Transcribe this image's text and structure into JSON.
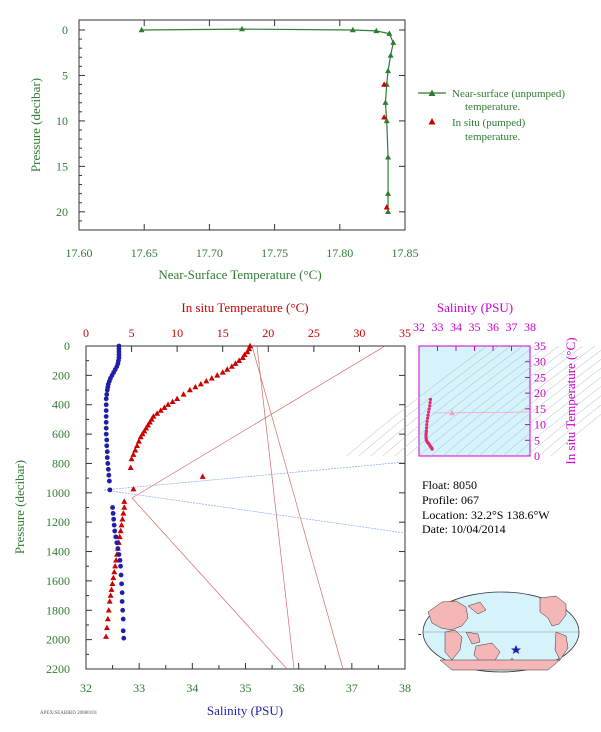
{
  "chart_data": [
    {
      "type": "line",
      "xlabel": "Near-Surface Temperature (°C)",
      "ylabel": "Pressure (decibar)",
      "xlim": [
        17.6,
        17.85
      ],
      "ylim": [
        0,
        22
      ],
      "xticks": [
        "17.60",
        "17.65",
        "17.70",
        "17.75",
        "17.80",
        "17.85"
      ],
      "yticks": [
        "0",
        "5",
        "10",
        "15",
        "20"
      ],
      "legend": [
        "Near-surface (unpumped)",
        "temperature.",
        "In situ (pumped)",
        "temperature."
      ],
      "series": [
        {
          "name": "Near-surface (unpumped) temperature.",
          "x": [
            17.648,
            17.725,
            17.81,
            17.828,
            17.838,
            17.841,
            17.839,
            17.837,
            17.836,
            17.835,
            17.836,
            17.837,
            17.837,
            17.837
          ],
          "y": [
            0.0,
            -0.1,
            0.0,
            0.1,
            0.4,
            1.4,
            2.8,
            4.5,
            6.0,
            8.0,
            10.0,
            14.0,
            18.0,
            20.0
          ]
        },
        {
          "name": "In situ (pumped) temperature.",
          "x": [
            17.834,
            17.834,
            17.836
          ],
          "y": [
            6.0,
            9.6,
            19.5
          ]
        }
      ]
    },
    {
      "type": "scatter",
      "xlabel": "Salinity (PSU)",
      "x2label": "In situ Temperature (°C)",
      "ylabel": "Pressure (decibar)",
      "xlim": [
        32,
        38
      ],
      "x2lim": [
        0,
        35
      ],
      "ylim": [
        0,
        2200
      ],
      "xticks": [
        "32",
        "33",
        "34",
        "35",
        "36",
        "37",
        "38"
      ],
      "x2ticks": [
        "0",
        "5",
        "10",
        "15",
        "20",
        "25",
        "30",
        "35"
      ],
      "yticks": [
        "0",
        "200",
        "400",
        "600",
        "800",
        "1000",
        "1200",
        "1400",
        "1600",
        "1800",
        "2000",
        "2200"
      ],
      "series": [
        {
          "name": "Temperature",
          "x": [
            18.0,
            17.9,
            17.7,
            17.4,
            17.2,
            16.8,
            16.4,
            16.0,
            15.5,
            15.0,
            14.4,
            13.8,
            13.2,
            12.6,
            12.0,
            11.4,
            10.7,
            10.0,
            9.5,
            9.0,
            8.6,
            8.2,
            7.8,
            7.4,
            7.2,
            7.0,
            6.8,
            6.6,
            6.4,
            6.2,
            6.0,
            5.8,
            5.6,
            5.4,
            5.2,
            5.0,
            4.9,
            12.8,
            5.2,
            4.2,
            4.2,
            4.1,
            4.0,
            3.9,
            3.8,
            3.7,
            3.6,
            3.5,
            3.4,
            3.3,
            3.2,
            3.1,
            3.0,
            2.9,
            2.8,
            2.7,
            2.6,
            2.5,
            2.4,
            2.3,
            2.2
          ],
          "y": [
            0,
            20,
            40,
            60,
            80,
            100,
            120,
            140,
            160,
            180,
            200,
            220,
            240,
            260,
            280,
            300,
            330,
            360,
            380,
            400,
            420,
            440,
            460,
            480,
            500,
            520,
            540,
            560,
            580,
            600,
            620,
            650,
            680,
            710,
            740,
            770,
            830,
            890,
            975,
            1060,
            1100,
            1140,
            1180,
            1220,
            1260,
            1300,
            1340,
            1380,
            1420,
            1460,
            1500,
            1540,
            1580,
            1620,
            1660,
            1700,
            1740,
            1800,
            1860,
            1920,
            1980
          ]
        },
        {
          "name": "Salinity",
          "x": [
            32.62,
            32.62,
            32.62,
            32.62,
            32.62,
            32.61,
            32.6,
            32.58,
            32.55,
            32.52,
            32.49,
            32.46,
            32.44,
            32.42,
            32.41,
            32.4,
            32.39,
            32.38,
            32.38,
            32.38,
            32.38,
            32.38,
            32.38,
            32.38,
            32.39,
            32.39,
            32.4,
            32.4,
            32.41,
            32.42,
            32.43,
            32.44,
            32.45,
            32.5,
            32.51,
            32.52,
            32.53,
            32.54,
            32.56,
            32.58,
            32.6,
            32.62,
            32.64,
            32.65,
            32.66,
            32.67,
            32.68,
            32.68,
            32.69,
            32.7,
            32.7,
            32.71
          ],
          "y": [
            0,
            20,
            40,
            60,
            80,
            100,
            120,
            140,
            160,
            180,
            200,
            220,
            240,
            260,
            280,
            300,
            330,
            360,
            400,
            440,
            480,
            520,
            560,
            600,
            640,
            680,
            720,
            760,
            800,
            840,
            880,
            920,
            980,
            1100,
            1140,
            1180,
            1220,
            1260,
            1300,
            1340,
            1380,
            1420,
            1460,
            1500,
            1560,
            1620,
            1680,
            1740,
            1800,
            1860,
            1940,
            1990
          ]
        }
      ]
    },
    {
      "type": "scatter",
      "x2label": "Salinity (PSU)",
      "ylabel": "In situ Temperature (°C)",
      "x2lim": [
        32,
        38
      ],
      "ylim": [
        0,
        35
      ],
      "x2ticks": [
        "32",
        "33",
        "34",
        "35",
        "36",
        "37",
        "38"
      ],
      "yticks": [
        "0",
        "5",
        "10",
        "15",
        "20",
        "25",
        "30",
        "35"
      ],
      "series": [
        {
          "name": "T-S",
          "x": [
            32.62,
            32.6,
            32.58,
            32.55,
            32.52,
            32.49,
            32.46,
            32.44,
            32.42,
            32.41,
            32.4,
            32.39,
            32.38,
            32.38,
            32.38,
            32.39,
            32.4,
            32.42,
            32.44,
            32.48,
            32.52,
            32.56,
            32.6,
            32.64,
            32.68,
            32.7,
            32.71
          ],
          "y": [
            18.0,
            17.0,
            16.0,
            15.0,
            14.0,
            13.0,
            12.0,
            11.0,
            10.0,
            9.0,
            8.0,
            7.5,
            7.0,
            6.5,
            6.0,
            5.5,
            5.0,
            4.8,
            4.5,
            4.2,
            4.0,
            3.6,
            3.2,
            2.9,
            2.6,
            2.4,
            2.2
          ]
        }
      ]
    }
  ],
  "info": {
    "float": "Float:  8050",
    "profile": "Profile:  067",
    "location": "Location:  32.2°S  138.6°W",
    "date": "Date:  10/04/2014"
  },
  "colors": {
    "green": "#2e7d32",
    "red": "#cc0000",
    "blue": "#1f1fa8",
    "magenta": "#cc00cc",
    "plot_bg": "#d6f2fb",
    "land": "#f4b6b6"
  },
  "footer": "APEX/SEABIRD 20080101"
}
